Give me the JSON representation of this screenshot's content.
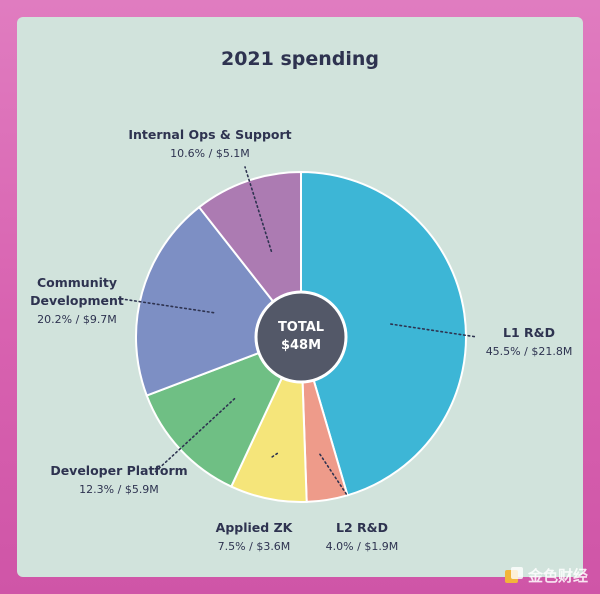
{
  "chart_data": {
    "type": "pie",
    "style": "donut",
    "title": "2021 spending",
    "center_label": [
      "TOTAL",
      "$48M"
    ],
    "slices": [
      {
        "name": [
          "L1 R&D"
        ],
        "value_label": "45.5% / $21.8M",
        "percent": 45.5,
        "amount_musd": 21.8,
        "color": "#3db6d6"
      },
      {
        "name": [
          "L2 R&D"
        ],
        "value_label": "4.0% / $1.9M",
        "percent": 4.0,
        "amount_musd": 1.9,
        "color": "#ee9b8a"
      },
      {
        "name": [
          "Applied ZK"
        ],
        "value_label": "7.5% / $3.6M",
        "percent": 7.5,
        "amount_musd": 3.6,
        "color": "#f5e57a"
      },
      {
        "name": [
          "Developer Platform"
        ],
        "value_label": "12.3% / $5.9M",
        "percent": 12.3,
        "amount_musd": 5.9,
        "color": "#6fbf84"
      },
      {
        "name": [
          "Community",
          "Development"
        ],
        "value_label": "20.2% / $9.7M",
        "percent": 20.2,
        "amount_musd": 9.7,
        "color": "#7d8fc4"
      },
      {
        "name": [
          "Internal Ops & Support"
        ],
        "value_label": "10.6% / $5.1M",
        "percent": 10.6,
        "amount_musd": 5.1,
        "color": "#ac7bb2"
      }
    ],
    "legend": "none"
  },
  "watermark": {
    "text": "金色财经",
    "icon": "cube-logo-icon"
  }
}
